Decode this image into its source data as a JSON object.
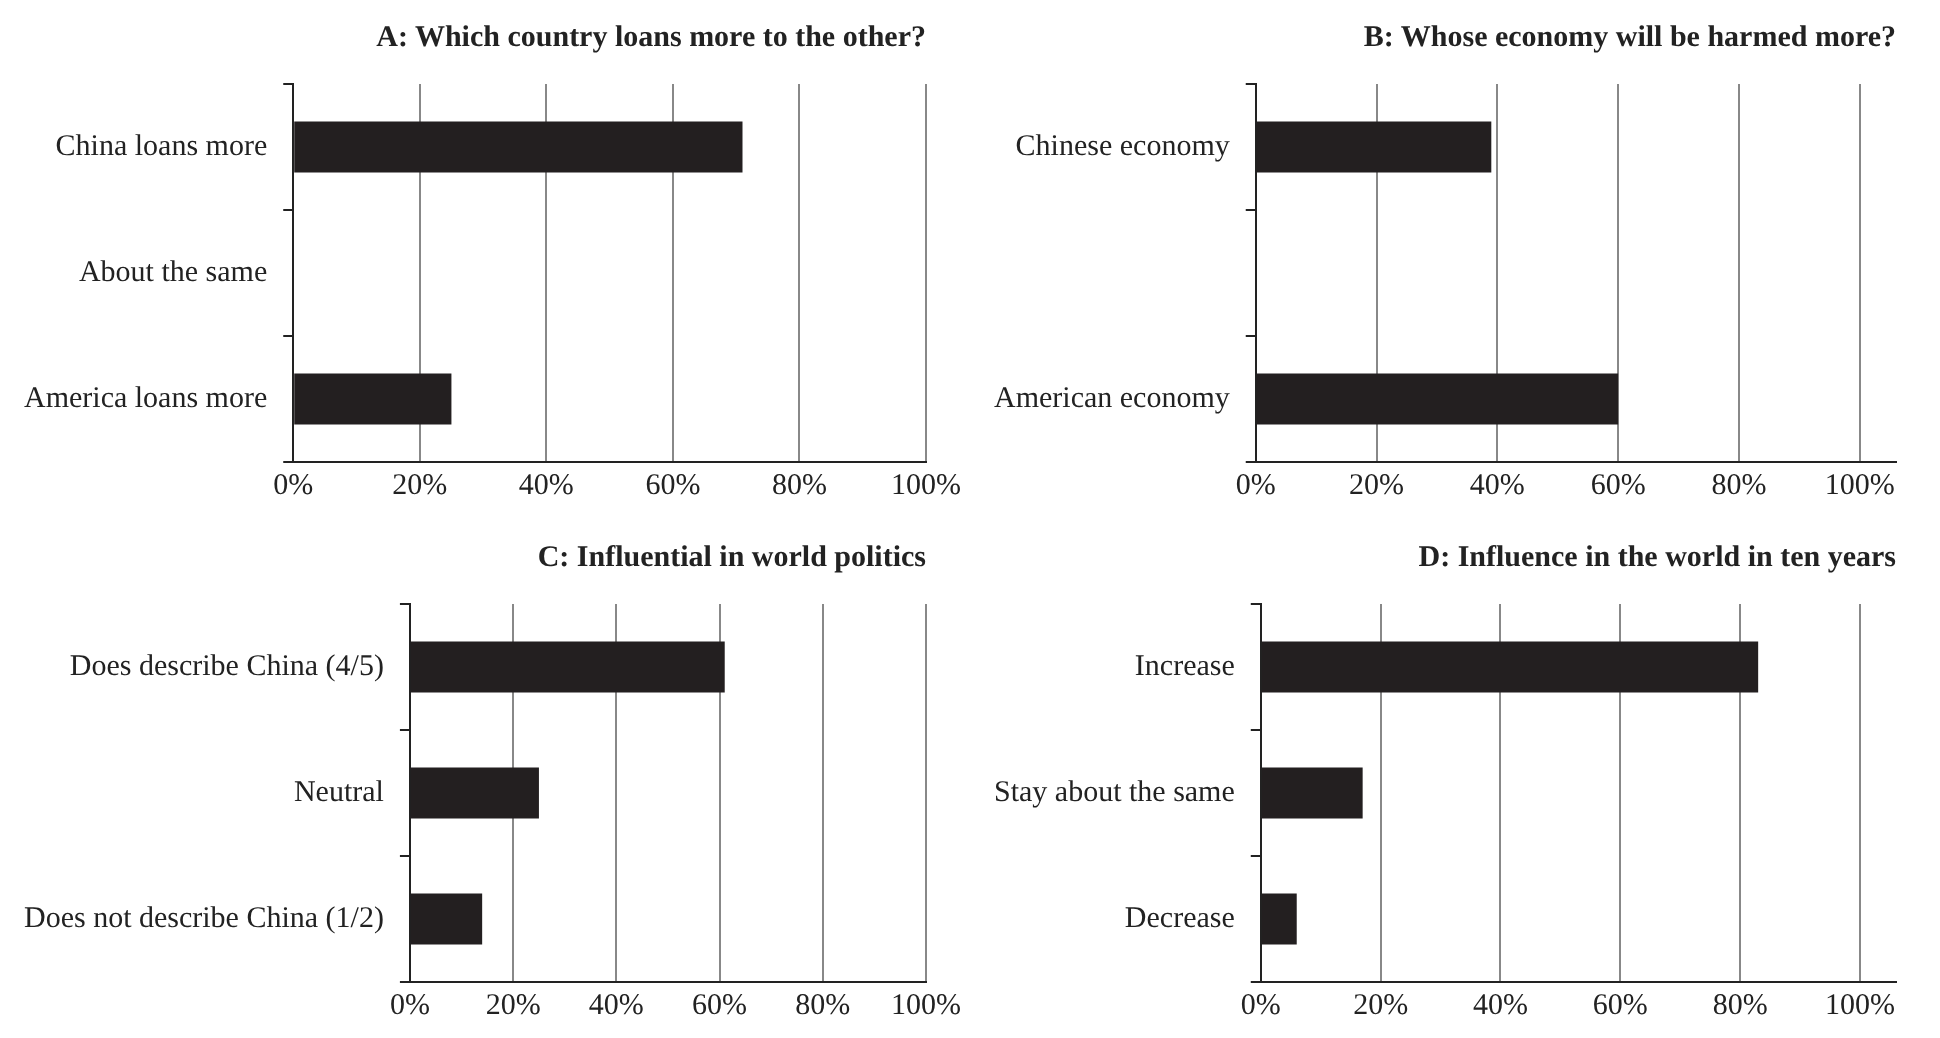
{
  "chart_data": [
    {
      "type": "bar",
      "orientation": "horizontal",
      "title": "A: Which country loans more to the other?",
      "categories": [
        "China loans more",
        "About the same",
        "America loans more"
      ],
      "values": [
        71,
        0,
        25
      ],
      "color": "#231f20",
      "xlim": [
        0,
        100
      ],
      "xticks": [
        {
          "value": 0,
          "label": "0%"
        },
        {
          "value": 20,
          "label": "20%"
        },
        {
          "value": 40,
          "label": "40%"
        },
        {
          "value": 60,
          "label": "60%"
        },
        {
          "value": 80,
          "label": "80%"
        },
        {
          "value": 100,
          "label": "100%"
        }
      ],
      "grid": "x",
      "legend": false
    },
    {
      "type": "bar",
      "orientation": "horizontal",
      "title": "B: Whose economy will be harmed more?",
      "categories": [
        "Chinese economy",
        null,
        "American economy"
      ],
      "values": [
        39,
        null,
        60
      ],
      "color": "#231f20",
      "xlim": [
        0,
        106
      ],
      "xticks": [
        {
          "value": 0,
          "label": "0%"
        },
        {
          "value": 20,
          "label": "20%"
        },
        {
          "value": 40,
          "label": "40%"
        },
        {
          "value": 60,
          "label": "60%"
        },
        {
          "value": 80,
          "label": "80%"
        },
        {
          "value": 100,
          "label": "100%"
        }
      ],
      "grid": "x",
      "legend": false
    },
    {
      "type": "bar",
      "orientation": "horizontal",
      "title": "C: Influential in world politics",
      "categories": [
        "Does describe China (4/5)",
        "Neutral",
        "Does not describe China (1/2)"
      ],
      "values": [
        61,
        25,
        14
      ],
      "color": "#231f20",
      "xlim": [
        0,
        100
      ],
      "xticks": [
        {
          "value": 0,
          "label": "0%"
        },
        {
          "value": 20,
          "label": "20%"
        },
        {
          "value": 40,
          "label": "40%"
        },
        {
          "value": 60,
          "label": "60%"
        },
        {
          "value": 80,
          "label": "80%"
        },
        {
          "value": 100,
          "label": "100%"
        }
      ],
      "grid": "x",
      "legend": false
    },
    {
      "type": "bar",
      "orientation": "horizontal",
      "title": "D: Influence in the world in ten years",
      "categories": [
        "Increase",
        "Stay about the same",
        "Decrease"
      ],
      "values": [
        83,
        17,
        6
      ],
      "color": "#231f20",
      "xlim": [
        0,
        106
      ],
      "xticks": [
        {
          "value": 0,
          "label": "0%"
        },
        {
          "value": 20,
          "label": "20%"
        },
        {
          "value": 40,
          "label": "40%"
        },
        {
          "value": 60,
          "label": "60%"
        },
        {
          "value": 80,
          "label": "80%"
        },
        {
          "value": 100,
          "label": "100%"
        }
      ],
      "grid": "x",
      "legend": false
    }
  ]
}
